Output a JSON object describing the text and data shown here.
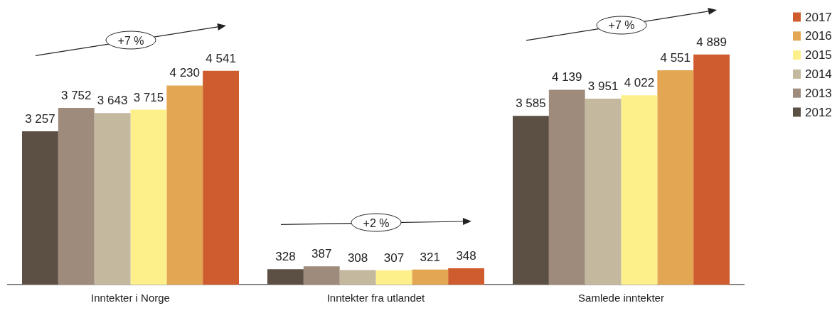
{
  "chart_data": {
    "type": "bar",
    "categories": [
      "Inntekter i Norge",
      "Inntekter fra utlandet",
      "Samlede inntekter"
    ],
    "series": [
      {
        "name": "2012",
        "color": "#5c4f44",
        "values": [
          3257,
          328,
          3585
        ],
        "value_labels": [
          "3 257",
          "328",
          "3 585"
        ]
      },
      {
        "name": "2013",
        "color": "#9f8b7b",
        "values": [
          3752,
          387,
          4139
        ],
        "value_labels": [
          "3 752",
          "387",
          "4 139"
        ]
      },
      {
        "name": "2014",
        "color": "#c4b89e",
        "values": [
          3643,
          308,
          3951
        ],
        "value_labels": [
          "3 643",
          "308",
          "3 951"
        ]
      },
      {
        "name": "2015",
        "color": "#fdf08a",
        "values": [
          3715,
          307,
          4022
        ],
        "value_labels": [
          "3 715",
          "307",
          "4 022"
        ]
      },
      {
        "name": "2016",
        "color": "#e3a653",
        "values": [
          4230,
          321,
          4551
        ],
        "value_labels": [
          "4 230",
          "321",
          "4 551"
        ]
      },
      {
        "name": "2017",
        "color": "#cf5c2e",
        "values": [
          4541,
          348,
          4889
        ],
        "value_labels": [
          "4 541",
          "348",
          "4 889"
        ]
      }
    ],
    "tick_labels": "x",
    "legend": "top right",
    "annotations": [
      "+7 %",
      "+2 %",
      "+7 %"
    ]
  }
}
